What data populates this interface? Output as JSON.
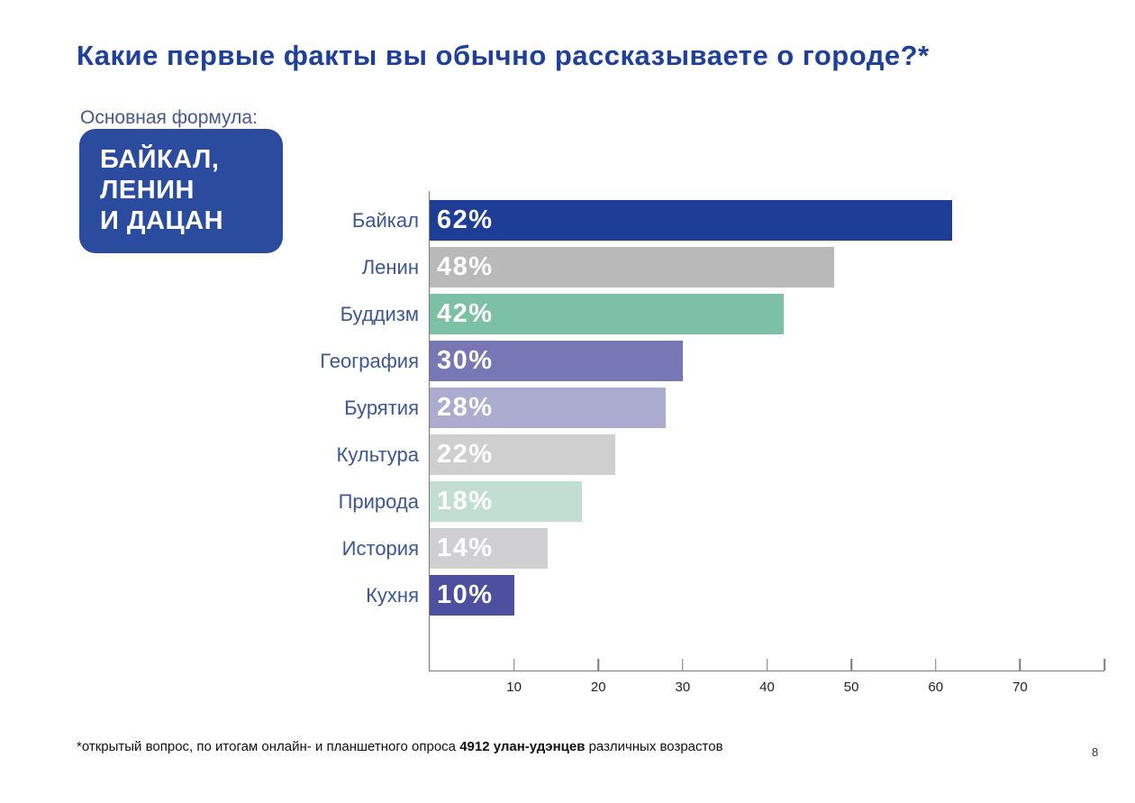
{
  "page": {
    "title": "Какие первые факты вы обычно рассказываете о городе?*",
    "footnote_prefix": "*открытый вопрос, по итогам онлайн- и планшетного опроса ",
    "footnote_bold": "4912 улан-удэнцев",
    "footnote_suffix": " различных возрастов",
    "page_number": "8"
  },
  "callout": {
    "label": "Основная формула:",
    "box_lines": [
      "БАЙКАЛ,",
      "ЛЕНИН",
      "И ДАЦАН"
    ],
    "box_color": "#2a4b9e"
  },
  "colors": {
    "title": "#1e409a",
    "category_label": "#3c5795",
    "axis": "#7a7a7a",
    "value_label": "#ffffff"
  },
  "chart_data": {
    "type": "bar",
    "orientation": "horizontal",
    "title": "",
    "xlabel": "",
    "ylabel": "",
    "categories": [
      "Байкал",
      "Ленин",
      "Буддизм",
      "География",
      "Бурятия",
      "Культура",
      "Природа",
      "История",
      "Кухня"
    ],
    "values": [
      62,
      48,
      42,
      30,
      28,
      22,
      18,
      14,
      10
    ],
    "value_labels": [
      "62%",
      "48%",
      "42%",
      "30%",
      "28%",
      "22%",
      "18%",
      "14%",
      "10%"
    ],
    "bar_colors": [
      "#1e3d96",
      "#b9b9b9",
      "#7cc0a5",
      "#7877b5",
      "#acabd0",
      "#cfcfcf",
      "#c2ded3",
      "#d0d0d3",
      "#4e4f9e"
    ],
    "xlim": [
      0,
      80
    ],
    "xticks": [
      10,
      20,
      30,
      40,
      50,
      60,
      70
    ],
    "axis_end_tick": 80,
    "grid": false,
    "legend": false
  }
}
